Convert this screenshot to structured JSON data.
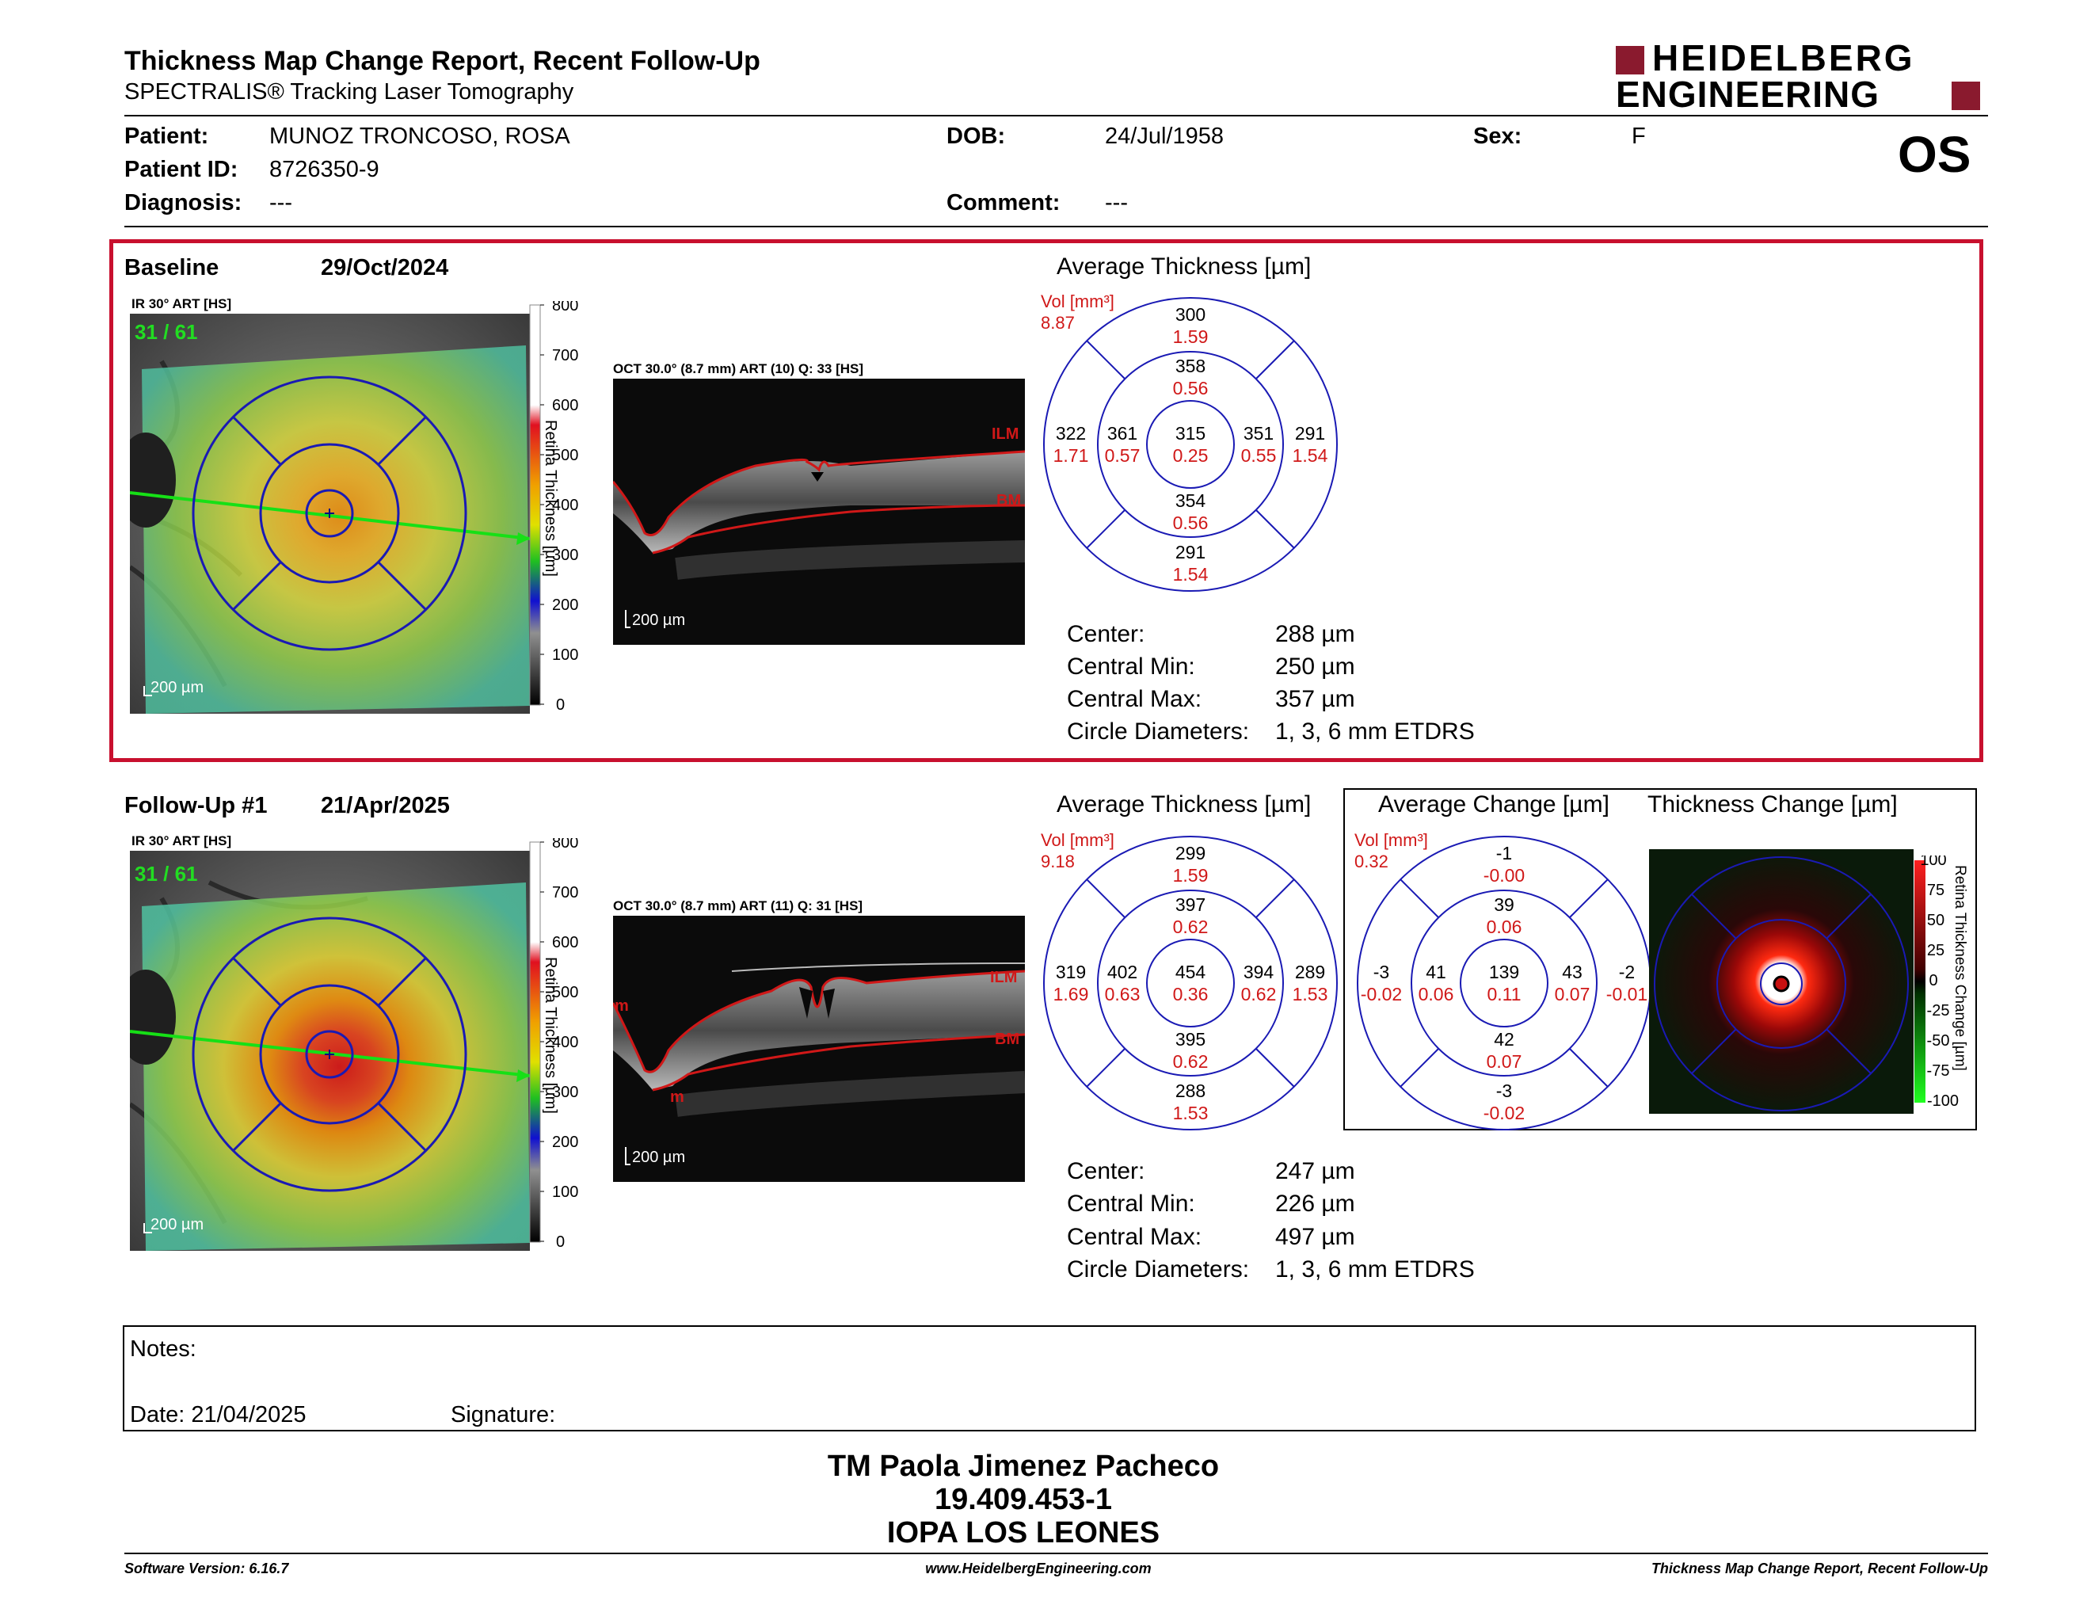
{
  "header": {
    "title": "Thickness Map Change Report, Recent Follow-Up",
    "subtitle": "SPECTRALIS® Tracking Laser Tomography",
    "logo_line1": "HEIDELBERG",
    "logo_line2": "ENGINEERING",
    "eye": "OS"
  },
  "patient": {
    "patient_label": "Patient:",
    "patient_value": "MUNOZ TRONCOSO, ROSA",
    "id_label": "Patient ID:",
    "id_value": "8726350-9",
    "diagnosis_label": "Diagnosis:",
    "diagnosis_value": "---",
    "dob_label": "DOB:",
    "dob_value": "24/Jul/1958",
    "comment_label": "Comment:",
    "comment_value": "---",
    "sex_label": "Sex:",
    "sex_value": "F"
  },
  "baseline": {
    "label": "Baseline",
    "date": "29/Oct/2024",
    "ir_label": "IR 30° ART [HS]",
    "ir_counter": "31 / 61",
    "ir_scale": "200 µm",
    "oct_label": "OCT 30.0° (8.7 mm) ART (10) Q: 33 [HS]",
    "oct_scale": "200 µm",
    "ilm": "ILM",
    "bm": "BM",
    "avg_title": "Average Thickness [µm]",
    "vol_label": "Vol [mm³]",
    "vol_value": "8.87",
    "sectors": {
      "outer_top": [
        "300",
        "1.59"
      ],
      "inner_top": [
        "358",
        "0.56"
      ],
      "outer_left": [
        "322",
        "1.71"
      ],
      "inner_left": [
        "361",
        "0.57"
      ],
      "center": [
        "315",
        "0.25"
      ],
      "inner_right": [
        "351",
        "0.55"
      ],
      "outer_right": [
        "291",
        "1.54"
      ],
      "inner_bottom": [
        "354",
        "0.56"
      ],
      "outer_bottom": [
        "291",
        "1.54"
      ]
    },
    "stats": {
      "center_label": "Center:",
      "center_value": "288 µm",
      "min_label": "Central Min:",
      "min_value": "250 µm",
      "max_label": "Central Max:",
      "max_value": "357 µm",
      "diam_label": "Circle Diameters:",
      "diam_value": "1, 3, 6 mm ETDRS"
    }
  },
  "followup": {
    "label": "Follow-Up #1",
    "date": "21/Apr/2025",
    "ir_label": "IR 30° ART [HS]",
    "ir_counter": "31 / 61",
    "ir_scale": "200 µm",
    "oct_label": "OCT 30.0° (8.7 mm) ART (11) Q: 31 [HS]",
    "oct_scale": "200 µm",
    "ilm": "ILM",
    "bm": "BM",
    "m": "m",
    "avg_title": "Average Thickness [µm]",
    "vol_label": "Vol [mm³]",
    "vol_value": "9.18",
    "sectors": {
      "outer_top": [
        "299",
        "1.59"
      ],
      "inner_top": [
        "397",
        "0.62"
      ],
      "outer_left": [
        "319",
        "1.69"
      ],
      "inner_left": [
        "402",
        "0.63"
      ],
      "center": [
        "454",
        "0.36"
      ],
      "inner_right": [
        "394",
        "0.62"
      ],
      "outer_right": [
        "289",
        "1.53"
      ],
      "inner_bottom": [
        "395",
        "0.62"
      ],
      "outer_bottom": [
        "288",
        "1.53"
      ]
    },
    "change_title": "Average Change [µm]",
    "change_vol_label": "Vol [mm³]",
    "change_vol_value": "0.32",
    "change_sectors": {
      "outer_top": [
        "-1",
        "-0.00"
      ],
      "inner_top": [
        "39",
        "0.06"
      ],
      "outer_left": [
        "-3",
        "-0.02"
      ],
      "inner_left": [
        "41",
        "0.06"
      ],
      "center": [
        "139",
        "0.11"
      ],
      "inner_right": [
        "43",
        "0.07"
      ],
      "outer_right": [
        "-2",
        "-0.01"
      ],
      "inner_bottom": [
        "42",
        "0.07"
      ],
      "outer_bottom": [
        "-3",
        "-0.02"
      ]
    },
    "thick_change_title": "Thickness Change [µm]",
    "stats": {
      "center_label": "Center:",
      "center_value": "247 µm",
      "min_label": "Central Min:",
      "min_value": "226 µm",
      "max_label": "Central Max:",
      "max_value": "497 µm",
      "diam_label": "Circle Diameters:",
      "diam_value": "1, 3, 6 mm ETDRS"
    }
  },
  "thickness_scale": {
    "title": "Retina Thickness [µm]",
    "ticks": [
      "800",
      "700",
      "600",
      "500",
      "400",
      "300",
      "200",
      "100",
      "0"
    ]
  },
  "change_scale": {
    "title": "Retina Thickness Change [µm]",
    "ticks": [
      "100",
      "75",
      "50",
      "25",
      "0",
      "-25",
      "-50",
      "-75",
      "-100"
    ]
  },
  "notes": {
    "notes_label": "Notes:",
    "date_label": "Date: 21/04/2025",
    "signature_label": "Signature:"
  },
  "signature": {
    "name": "TM Paola Jimenez Pacheco",
    "rut": "19.409.453-1",
    "institution": "IOPA LOS LEONES"
  },
  "footer": {
    "version": "Software Version: 6.16.7",
    "website": "www.HeidelbergEngineering.com",
    "report": "Thickness Map Change Report, Recent Follow-Up"
  },
  "colors": {
    "accent_red": "#c8102e",
    "logo_red": "#8a1a2e",
    "grid_blue": "#1a1ab4",
    "value_red": "#d01818"
  }
}
